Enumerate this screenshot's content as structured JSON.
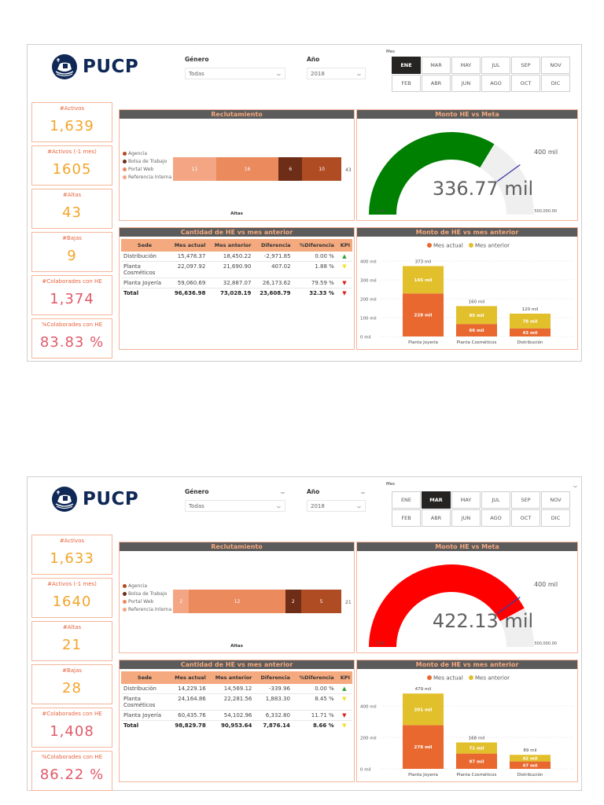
{
  "brand": {
    "name": "PUCP",
    "color": "#0f2856"
  },
  "colors": {
    "accent": "#e8623d",
    "card_border": "#f4b69b",
    "value_orange": "#f2a52a",
    "value_pink": "#e05a6a",
    "title_bar": "#5b5b5b",
    "title_text": "#f4a97f",
    "mes_actual": "#e8682f",
    "mes_anterior": "#e2c02c",
    "gauge_green": "#008000",
    "gauge_red": "#ff0000",
    "gauge_bg": "#f0efef"
  },
  "dashboards": [
    {
      "filters": {
        "genero_label": "Género",
        "genero_value": "Todas",
        "ano_label": "Año",
        "ano_value": "2018",
        "mes_label": "Mes",
        "months": [
          "ENE",
          "MAR",
          "MAY",
          "JUL",
          "SEP",
          "NOV",
          "FEB",
          "ABR",
          "JUN",
          "AGO",
          "OCT",
          "DIC"
        ],
        "selected": "ENE"
      },
      "cards": [
        {
          "title": "#Activos",
          "value": "1,639",
          "style": "orange"
        },
        {
          "title": "#Activos (-1 mes)",
          "value": "1605",
          "style": "orange"
        },
        {
          "title": "#Altas",
          "value": "43",
          "style": "orange"
        },
        {
          "title": "#Bajas",
          "value": "9",
          "style": "orange"
        },
        {
          "title": "#Colaborades con HE",
          "value": "1,374",
          "style": "pink"
        },
        {
          "title": "%Colaborades con HE",
          "value": "83.83 %",
          "style": "pink"
        }
      ],
      "reclutamiento": {
        "title": "Reclutamiento",
        "legend": [
          "Agencia",
          "Bolsa de Trabajo",
          "Portal Web",
          "Referencia Interna"
        ],
        "segments": [
          {
            "label": "Referencia Interna",
            "value": 11,
            "color": "#f4a584"
          },
          {
            "label": "Portal Web",
            "value": 16,
            "color": "#eb8a5d"
          },
          {
            "label": "Bolsa de Trabajo",
            "value": 6,
            "color": "#6e2d17"
          },
          {
            "label": "Agencia",
            "value": 10,
            "color": "#b04c23"
          }
        ],
        "total": "43",
        "xlabel": "Altas"
      },
      "gauge": {
        "title": "Monto HE vs Meta",
        "value_label": "336.77 mil",
        "value": 336770,
        "min_label": "0.00",
        "max_label": "500,000.00",
        "max": 500000,
        "target": 400000,
        "target_label": "400 mil",
        "fill": "#008000"
      },
      "table": {
        "title": "Cantidad de HE vs mes anterior",
        "columns": [
          "Sede",
          "Mes actual",
          "Mes anterior",
          "Diferencia",
          "%Diferencia",
          "KPI"
        ],
        "rows": [
          {
            "sede": "Distribución",
            "actual": "15,478.37",
            "anterior": "18,450.22",
            "diferencia": "-2,971.85",
            "pct": "0.00 %",
            "kpi": "up"
          },
          {
            "sede": "Planta Cosméticos",
            "actual": "22,097.92",
            "anterior": "21,690.90",
            "diferencia": "407.02",
            "pct": "1.88 %",
            "kpi": "warn"
          },
          {
            "sede": "Planta Joyería",
            "actual": "59,060.69",
            "anterior": "32,887.07",
            "diferencia": "26,173.62",
            "pct": "79.59 %",
            "kpi": "down"
          }
        ],
        "total": {
          "sede": "Total",
          "actual": "96,636.98",
          "anterior": "73,028.19",
          "diferencia": "23,608.79",
          "pct": "32.33 %",
          "kpi": "down"
        }
      },
      "bar_chart": {
        "title": "Monto de HE vs mes anterior",
        "legend": [
          "Mes actual",
          "Mes anterior"
        ],
        "yticks": [
          "0 mil",
          "100 mil",
          "200 mil",
          "300 mil",
          "400 mil"
        ],
        "ymax": 400,
        "categories": [
          "Planta Joyería",
          "Planta Cosméticos",
          "Distribución"
        ],
        "mes_actual": [
          228,
          66,
          43
        ],
        "mes_anterior": [
          145,
          95,
          78
        ],
        "totals": [
          "373 mil",
          "160 mil",
          "120 mil"
        ]
      }
    },
    {
      "filters": {
        "genero_label": "Género",
        "genero_value": "Todas",
        "ano_label": "Año",
        "ano_value": "2018",
        "mes_label": "Mes",
        "months": [
          "ENE",
          "MAR",
          "MAY",
          "JUL",
          "SEP",
          "NOV",
          "FEB",
          "ABR",
          "JUN",
          "AGO",
          "OCT",
          "DIC"
        ],
        "selected": "MAR"
      },
      "cards": [
        {
          "title": "#Activos",
          "value": "1,633",
          "style": "orange"
        },
        {
          "title": "#Activos (-1 mes)",
          "value": "1640",
          "style": "orange"
        },
        {
          "title": "#Altas",
          "value": "21",
          "style": "orange"
        },
        {
          "title": "#Bajas",
          "value": "28",
          "style": "orange"
        },
        {
          "title": "#Colaborades con HE",
          "value": "1,408",
          "style": "pink"
        },
        {
          "title": "%Colaborades con HE",
          "value": "86.22 %",
          "style": "pink"
        }
      ],
      "reclutamiento": {
        "title": "Reclutamiento",
        "legend": [
          "Agencia",
          "Bolsa de Trabajo",
          "Portal Web",
          "Referencia Interna"
        ],
        "segments": [
          {
            "label": "Referencia Interna",
            "value": 2,
            "color": "#f4a584"
          },
          {
            "label": "Portal Web",
            "value": 12,
            "color": "#eb8a5d"
          },
          {
            "label": "Bolsa de Trabajo",
            "value": 2,
            "color": "#6e2d17"
          },
          {
            "label": "Agencia",
            "value": 5,
            "color": "#b04c23"
          }
        ],
        "total": "21",
        "xlabel": "Altas"
      },
      "gauge": {
        "title": "Monto HE vs Meta",
        "value_label": "422.13 mil",
        "value": 422130,
        "min_label": "0.00",
        "max_label": "500,000.00",
        "max": 500000,
        "target": 400000,
        "target_label": "400 mil",
        "fill": "#ff0000"
      },
      "table": {
        "title": "Cantidad de HE vs mes anterior",
        "columns": [
          "Sede",
          "Mes actual",
          "Mes anterior",
          "Diferencia",
          "%Diferencia",
          "KPI"
        ],
        "rows": [
          {
            "sede": "Distribución",
            "actual": "14,229.16",
            "anterior": "14,569.12",
            "diferencia": "-339.96",
            "pct": "0.00 %",
            "kpi": "up"
          },
          {
            "sede": "Planta Cosméticos",
            "actual": "24,164.86",
            "anterior": "22,281.56",
            "diferencia": "1,883.30",
            "pct": "8.45 %",
            "kpi": "warn"
          },
          {
            "sede": "Planta Joyería",
            "actual": "60,435.76",
            "anterior": "54,102.96",
            "diferencia": "6,332.80",
            "pct": "11.71 %",
            "kpi": "down"
          }
        ],
        "total": {
          "sede": "Total",
          "actual": "98,829.78",
          "anterior": "90,953.64",
          "diferencia": "7,876.14",
          "pct": "8.66 %",
          "kpi": "warn"
        }
      },
      "bar_chart": {
        "title": "Monto de HE vs mes anterior",
        "legend": [
          "Mes actual",
          "Mes anterior"
        ],
        "yticks": [
          "0 mil",
          "200 mil",
          "400 mil"
        ],
        "ymax": 480,
        "categories": [
          "Planta Joyería",
          "Planta Cosméticos",
          "Distribución"
        ],
        "mes_actual": [
          278,
          97,
          47
        ],
        "mes_anterior": [
          201,
          71,
          42
        ],
        "totals": [
          "479 mil",
          "168 mil",
          "89 mil"
        ]
      }
    }
  ]
}
